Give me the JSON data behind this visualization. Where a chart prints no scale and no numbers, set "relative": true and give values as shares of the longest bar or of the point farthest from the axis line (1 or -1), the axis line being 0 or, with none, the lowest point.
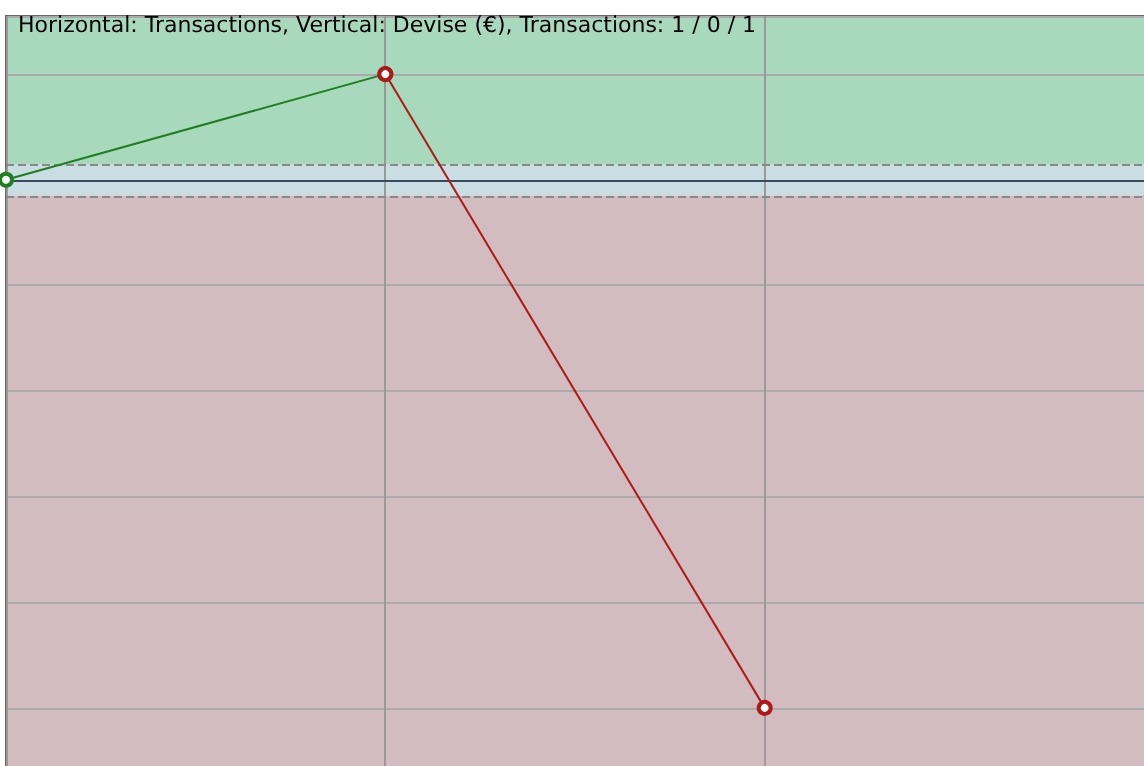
{
  "chart_data": {
    "type": "line",
    "title": "Horizontal: Transactions, Vertical: Devise (€), Transactions: 1 / 0 / 1",
    "relative": true,
    "categories": [
      null,
      null,
      null,
      null
    ],
    "series": [
      {
        "color": "#1f7f1f",
        "values": [
          0,
          0.2,
          null,
          null
        ]
      },
      {
        "color": "#b01818",
        "values": [
          null,
          0.2,
          -1,
          null
        ]
      }
    ],
    "bands": [
      {
        "axis": "y",
        "from": 0.03,
        "to": 0.31,
        "color": "#a9d9bd"
      },
      {
        "axis": "y",
        "from": -0.03,
        "to": 0.03,
        "color": "#c9dde2"
      },
      {
        "axis": "y",
        "from": -1.11,
        "to": -0.03,
        "color": "#d2bcc0"
      }
    ],
    "ref_lines": [
      {
        "axis": "y",
        "value": 0,
        "color": "#3a4a5a",
        "line_style": "solid"
      },
      {
        "axis": "y",
        "value": 0.03,
        "color": "#888888",
        "line_style": "dashed"
      },
      {
        "axis": "y",
        "value": -0.034,
        "color": "#888888",
        "line_style": "dashed"
      }
    ],
    "grid": true,
    "marker": "circle",
    "line_style": "solid"
  }
}
